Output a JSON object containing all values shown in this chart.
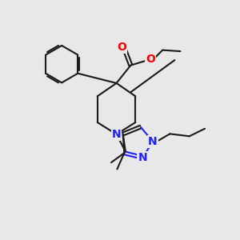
{
  "background_color": "#e8e8e8",
  "bond_color": "#1a1a1a",
  "N_color": "#2020ff",
  "O_color": "#ff0000",
  "bond_width": 1.5,
  "figsize": [
    3.0,
    3.0
  ],
  "dpi": 100,
  "xlim": [
    0,
    10
  ],
  "ylim": [
    0,
    10
  ]
}
